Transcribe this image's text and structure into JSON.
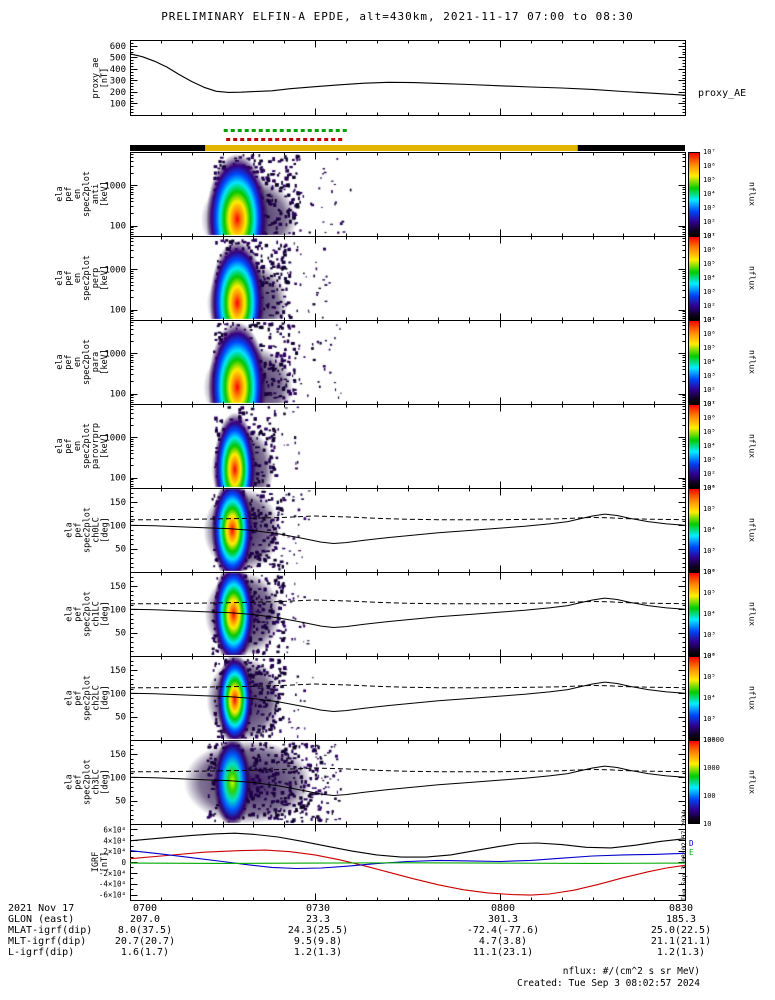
{
  "title": "PRELIMINARY ELFIN-A EPDE, alt=430km, 2021-11-17 07:00 to 08:30",
  "right_labels": {
    "proxy_ae": "proxy_AE"
  },
  "footer": {
    "units": "nflux: #/(cm^2 s sr MeV)",
    "created": "Created: Tue Sep 3 08:02:57 2024",
    "side_timestamp": "Tue Sep 3 08:02:57 2024"
  },
  "time_axis": {
    "date_label": "2021 Nov 17",
    "tick_labels": [
      "0700",
      "0730",
      "0800",
      "0830"
    ],
    "tick_minutes": [
      0,
      30,
      60,
      90
    ]
  },
  "bottom_rows": [
    {
      "label": "GLON (east)",
      "values": [
        "207.0",
        "23.3",
        "301.3",
        "185.3"
      ]
    },
    {
      "label": "MLAT-igrf(dip)",
      "values": [
        "8.0(37.5)",
        "24.3(25.5)",
        "-72.4(-77.6)",
        "25.0(22.5)"
      ]
    },
    {
      "label": "MLT-igrf(dip)",
      "values": [
        "20.7(20.7)",
        "9.5(9.8)",
        "4.7(3.8)",
        "21.1(21.1)"
      ]
    },
    {
      "label": "L-igrf(dip)",
      "values": [
        "1.6(1.7)",
        "1.2(1.3)",
        "11.1(23.1)",
        "1.2(1.3)"
      ]
    }
  ],
  "science_zone_bar": {
    "segments": [
      {
        "t0": 0,
        "t1": 12.2,
        "color": "#000000"
      },
      {
        "t0": 12.2,
        "t1": 72.6,
        "color": "#e0b400"
      },
      {
        "t0": 72.6,
        "t1": 90,
        "color": "#000000"
      }
    ]
  },
  "status_marks": {
    "green": {
      "t0": 15.2,
      "t1": 34.8,
      "color": "#00a000"
    },
    "red": {
      "t0": 15.6,
      "t1": 34.2,
      "color": "#c00000"
    }
  },
  "chart_data": {
    "type": "multi-panel-time-series",
    "x_axis": {
      "start": "2021-11-17 07:00",
      "end": "2021-11-17 08:30",
      "minutes": [
        0,
        90
      ]
    },
    "pa_lines": {
      "solid": {
        "name": "loss cone",
        "x": [
          0,
          4,
          8,
          12,
          16,
          20,
          24,
          28,
          31,
          33,
          35,
          38,
          42,
          46,
          50,
          55,
          60,
          64,
          68,
          71,
          73,
          75,
          77,
          79,
          81,
          84,
          87,
          90
        ],
        "y": [
          100,
          99,
          97,
          95,
          93,
          89,
          82,
          72,
          64,
          61,
          63,
          68,
          74,
          79,
          84,
          89,
          94,
          98,
          103,
          108,
          114,
          120,
          124,
          121,
          115,
          108,
          103,
          100
        ]
      },
      "dashed": {
        "name": "anti loss cone",
        "x": [
          0,
          5,
          10,
          15,
          20,
          25,
          30,
          35,
          40,
          45,
          50,
          55,
          60,
          65,
          70,
          73,
          75,
          78,
          81,
          85,
          90
        ],
        "y": [
          112,
          112,
          113,
          114,
          115,
          117,
          120,
          118,
          115,
          113,
          112,
          112,
          112,
          113,
          114,
          116,
          117,
          116,
          114,
          113,
          112
        ]
      }
    },
    "panels": [
      {
        "id": "proxy_ae",
        "type": "line",
        "ylabel_lines": [
          "proxy_ae",
          "[nT]"
        ],
        "ylim": [
          0,
          650
        ],
        "ytick_vals": [
          100,
          200,
          300,
          400,
          500,
          600
        ],
        "ytick_labels": [
          "100",
          "200",
          "300",
          "400",
          "500",
          "600"
        ],
        "series": [
          {
            "name": "proxy_AE",
            "color": "#000000",
            "x": [
              0,
              2,
              4,
              6,
              8,
              10,
              12,
              14,
              16,
              18,
              20,
              23,
              26,
              30,
              34,
              38,
              42,
              46,
              50,
              55,
              60,
              65,
              70,
              75,
              80,
              85,
              90
            ],
            "y": [
              530,
              505,
              465,
              415,
              350,
              290,
              240,
              205,
              196,
              198,
              203,
              210,
              228,
              245,
              262,
              276,
              283,
              281,
              274,
              264,
              253,
              243,
              234,
              222,
              204,
              188,
              172
            ]
          }
        ]
      },
      {
        "id": "en_anti",
        "type": "spectrogram",
        "yscale": "log",
        "ylabel_lines": [
          "ela",
          "pef",
          "en",
          "spec2plot",
          "anti",
          "[keV]"
        ],
        "ylim": [
          55,
          6800
        ],
        "ytick_vals": [
          100,
          1000
        ],
        "ytick_labels": [
          "100",
          "1000"
        ],
        "colorbar": {
          "label": "nflux",
          "ticks": [
            "10⁷",
            "10⁶",
            "10⁵",
            "10⁴",
            "10³",
            "10²",
            "10¹"
          ]
        },
        "enhancement": {
          "t0": 14.2,
          "t1": 26.8,
          "peak_t": 17.4,
          "core": "rainbow",
          "cy_frac": 0.8,
          "ry_frac": 0.78,
          "rx_frac": 0.4,
          "speckles": 300,
          "out_ext": 55,
          "peak_flux": "10⁷ at ~100 keV"
        }
      },
      {
        "id": "en_perp",
        "type": "spectrogram",
        "yscale": "log",
        "ylabel_lines": [
          "ela",
          "pef",
          "en",
          "spec2plot",
          "perp",
          "[keV]"
        ],
        "ylim": [
          55,
          6800
        ],
        "ytick_vals": [
          100,
          1000
        ],
        "ytick_labels": [
          "100",
          "1000"
        ],
        "colorbar": {
          "label": "nflux",
          "ticks": [
            "10⁷",
            "10⁶",
            "10⁵",
            "10⁴",
            "10³",
            "10²",
            "10¹"
          ]
        },
        "enhancement": {
          "t0": 14.4,
          "t1": 25.0,
          "peak_t": 17.4,
          "core": "rainbow",
          "cy_frac": 0.8,
          "ry_frac": 0.75,
          "rx_frac": 0.42,
          "speckles": 260,
          "out_ext": 45,
          "peak_flux": "10⁷ at ~100 keV"
        }
      },
      {
        "id": "en_para",
        "type": "spectrogram",
        "yscale": "log",
        "ylabel_lines": [
          "ela",
          "pef",
          "en",
          "spec2plot",
          "para",
          "[keV]"
        ],
        "ylim": [
          55,
          6800
        ],
        "ytick_vals": [
          100,
          1000
        ],
        "ytick_labels": [
          "100",
          "1000"
        ],
        "colorbar": {
          "label": "nflux",
          "ticks": [
            "10⁷",
            "10⁶",
            "10⁵",
            "10⁴",
            "10³",
            "10²",
            "10¹"
          ]
        },
        "enhancement": {
          "t0": 14.2,
          "t1": 26.0,
          "peak_t": 17.4,
          "core": "rainbow",
          "cy_frac": 0.8,
          "ry_frac": 0.78,
          "rx_frac": 0.4,
          "speckles": 280,
          "out_ext": 50,
          "peak_flux": "10⁷ at ~100 keV"
        }
      },
      {
        "id": "en_parovrprp",
        "type": "spectrogram",
        "yscale": "log",
        "ylabel_lines": [
          "ela",
          "pef",
          "en",
          "spec2plot",
          "parovrprp",
          "[keV]"
        ],
        "ylim": [
          55,
          6800
        ],
        "ytick_vals": [
          100,
          1000
        ],
        "ytick_labels": [
          "100",
          "1000"
        ],
        "colorbar": {
          "label": "nflux",
          "ticks": [
            "10⁷",
            "10⁶",
            "10⁵",
            "10⁴",
            "10³",
            "10²",
            "10¹"
          ]
        },
        "enhancement": {
          "t0": 14.4,
          "t1": 22.6,
          "peak_t": 17.0,
          "core": "rainbow",
          "cy_frac": 0.78,
          "ry_frac": 0.68,
          "rx_frac": 0.42,
          "speckles": 170,
          "out_ext": 30,
          "peak_flux": "10⁶ at ~100 keV"
        }
      },
      {
        "id": "pa_ch0lc",
        "type": "spectrogram",
        "yscale": "linear",
        "ylabel_lines": [
          "ela",
          "pef",
          "spec2plot",
          "ch0LC",
          "[deg]"
        ],
        "ylim": [
          0,
          180
        ],
        "ytick_vals": [
          50,
          100,
          150
        ],
        "ytick_labels": [
          "50",
          "100",
          "150"
        ],
        "colorbar": {
          "label": "nflux",
          "ticks": [
            "10⁶",
            "10⁵",
            "10⁴",
            "10³",
            "10²"
          ]
        },
        "overlay_lines": "pa_lines",
        "enhancement": {
          "t0": 14.0,
          "t1": 24.0,
          "peak_t": 16.6,
          "core": "rainbow",
          "cy_frac": 0.5,
          "ry_frac": 0.62,
          "rx_frac": 0.34,
          "speckles": 260,
          "out_ext": 30,
          "peak_flux": "10⁶ at ~100 deg"
        }
      },
      {
        "id": "pa_ch1lc",
        "type": "spectrogram",
        "yscale": "linear",
        "ylabel_lines": [
          "ela",
          "pef",
          "spec2plot",
          "ch1LC",
          "[deg]"
        ],
        "ylim": [
          0,
          180
        ],
        "ytick_vals": [
          50,
          100,
          150
        ],
        "ytick_labels": [
          "50",
          "100",
          "150"
        ],
        "colorbar": {
          "label": "nflux",
          "ticks": [
            "10⁶",
            "10⁵",
            "10⁴",
            "10³",
            "10²"
          ]
        },
        "overlay_lines": "pa_lines",
        "enhancement": {
          "t0": 14.0,
          "t1": 24.0,
          "peak_t": 16.8,
          "core": "rainbow",
          "cy_frac": 0.5,
          "ry_frac": 0.62,
          "rx_frac": 0.34,
          "speckles": 260,
          "out_ext": 30,
          "peak_flux": "10⁶ at ~100 deg"
        }
      },
      {
        "id": "pa_ch2lc",
        "type": "spectrogram",
        "yscale": "linear",
        "ylabel_lines": [
          "ela",
          "pef",
          "spec2plot",
          "ch2LC",
          "[deg]"
        ],
        "ylim": [
          0,
          180
        ],
        "ytick_vals": [
          50,
          100,
          150
        ],
        "ytick_labels": [
          "50",
          "100",
          "150"
        ],
        "colorbar": {
          "label": "nflux",
          "ticks": [
            "10⁶",
            "10⁵",
            "10⁴",
            "10³",
            "10²"
          ]
        },
        "overlay_lines": "pa_lines",
        "enhancement": {
          "t0": 14.2,
          "t1": 24.0,
          "peak_t": 17.0,
          "core": "rainbow",
          "cy_frac": 0.52,
          "ry_frac": 0.55,
          "rx_frac": 0.3,
          "speckles": 240,
          "out_ext": 35,
          "peak_flux": "10⁵ at ~100 deg"
        }
      },
      {
        "id": "pa_ch3lc",
        "type": "spectrogram",
        "yscale": "linear",
        "ylabel_lines": [
          "ela",
          "pef",
          "spec2plot",
          "ch3LC",
          "[deg]"
        ],
        "ylim": [
          0,
          180
        ],
        "ytick_vals": [
          50,
          100,
          150
        ],
        "ytick_labels": [
          "50",
          "100",
          "150"
        ],
        "colorbar": {
          "label": "nflux",
          "ticks": [
            "10000",
            "1000",
            "100",
            "10"
          ]
        },
        "overlay_lines": "pa_lines",
        "enhancement": {
          "t0": 13.2,
          "t1": 30.0,
          "peak_t": 16.6,
          "core": "green",
          "cy_frac": 0.5,
          "ry_frac": 0.55,
          "rx_frac": 0.18,
          "speckles": 420,
          "out_ext": 25,
          "peak_flux": "1000 at ~100 deg"
        }
      },
      {
        "id": "igrf",
        "type": "line",
        "ylabel_lines": [
          "IGRF",
          "[nT]"
        ],
        "ylim": [
          -70000,
          70000
        ],
        "ytick_vals": [
          -60000,
          -40000,
          -20000,
          0,
          20000,
          40000,
          60000
        ],
        "ytick_labels": [
          "-6×10⁴",
          "-4×10⁴",
          "-2×10⁴",
          "0",
          "2×10⁴",
          "4×10⁴",
          "6×10⁴"
        ],
        "legend": [
          {
            "label": "D",
            "color": "#0000cc"
          },
          {
            "label": "E",
            "color": "#00aa00"
          }
        ],
        "series": [
          {
            "name": "B_black",
            "color": "#000000",
            "x": [
              0,
              5,
              10,
              14,
              17,
              20,
              24,
              28,
              32,
              36,
              40,
              44,
              48,
              52,
              56,
              60,
              63,
              66,
              70,
              74,
              78,
              82,
              86,
              90
            ],
            "y": [
              39000,
              44000,
              49000,
              52000,
              53000,
              51000,
              46000,
              38000,
              29000,
              20000,
              13000,
              9000,
              9000,
              13000,
              21000,
              29000,
              34000,
              35000,
              32000,
              27000,
              26000,
              31000,
              38000,
              43000
            ]
          },
          {
            "name": "B_red",
            "color": "#cc0000",
            "x": [
              0,
              6,
              12,
              18,
              22,
              26,
              30,
              34,
              38,
              42,
              46,
              50,
              54,
              58,
              62,
              65,
              68,
              72,
              76,
              80,
              84,
              87,
              90
            ],
            "y": [
              6000,
              12000,
              18000,
              21000,
              22000,
              19000,
              13000,
              4000,
              -7000,
              -19000,
              -31000,
              -42000,
              -51000,
              -57000,
              -60000,
              -61000,
              -59000,
              -52000,
              -41000,
              -29000,
              -18000,
              -11000,
              -6000
            ]
          },
          {
            "name": "B_blue",
            "color": "#0000cc",
            "x": [
              0,
              5,
              10,
              15,
              19,
              23,
              27,
              31,
              35,
              40,
              45,
              50,
              55,
              60,
              65,
              70,
              75,
              80,
              85,
              90
            ],
            "y": [
              21000,
              15000,
              8000,
              1000,
              -5000,
              -10000,
              -12000,
              -11000,
              -8000,
              -3000,
              1000,
              3000,
              2000,
              1000,
              3000,
              7000,
              11000,
              13000,
              14000,
              16000
            ]
          },
          {
            "name": "B_green",
            "color": "#00aa00",
            "x": [
              0,
              15,
              30,
              45,
              60,
              75,
              90
            ],
            "y": [
              -2000,
              -2500,
              -2000,
              -1500,
              -2000,
              -2500,
              -2000
            ]
          }
        ]
      }
    ]
  }
}
